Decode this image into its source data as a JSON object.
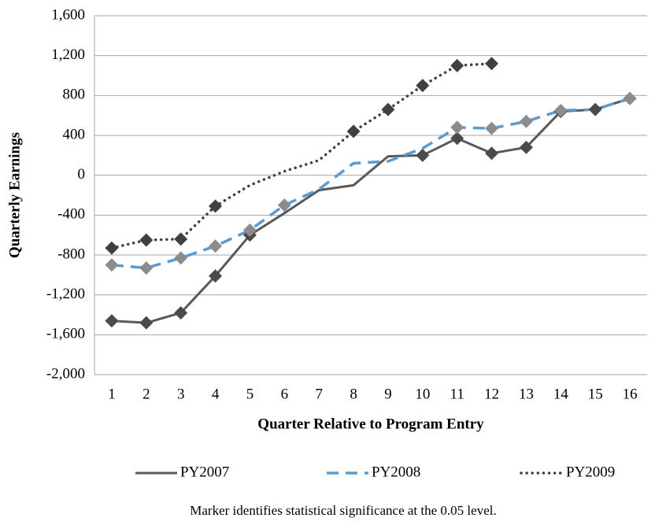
{
  "chart_data": {
    "type": "line",
    "y_label": "Quarterly Earnings",
    "x_label": "Quarter Relative to Program Entry",
    "note": "Marker identifies statistical significance at the 0.05 level.",
    "categories": [
      "1",
      "2",
      "3",
      "4",
      "5",
      "6",
      "7",
      "8",
      "9",
      "10",
      "11",
      "12",
      "13",
      "14",
      "15",
      "16"
    ],
    "ylim": [
      -2000,
      1600
    ],
    "yticks": [
      {
        "value": -2000,
        "label": "-2,000"
      },
      {
        "value": -1600,
        "label": "-1,600"
      },
      {
        "value": -1200,
        "label": "-1,200"
      },
      -800,
      -400,
      0,
      400,
      800,
      {
        "value": 1200,
        "label": "1,200"
      },
      {
        "value": 1600,
        "label": "1,600"
      }
    ],
    "grid": true,
    "legend": "bottom",
    "series": [
      {
        "name": "PY2007",
        "color": "#595959",
        "style": "solid",
        "marker_color": "#4a4a4a",
        "values": [
          -1460,
          -1480,
          -1380,
          -1010,
          -600,
          -380,
          -150,
          -100,
          190,
          200,
          370,
          220,
          280,
          640,
          660,
          770
        ],
        "significant": [
          true,
          true,
          true,
          true,
          true,
          false,
          false,
          false,
          false,
          true,
          true,
          true,
          true,
          true,
          true,
          true
        ]
      },
      {
        "name": "PY2008",
        "color": "#5b9bd5",
        "style": "dashed",
        "marker_color": "#8c8c8c",
        "values": [
          -900,
          -930,
          -830,
          -710,
          -550,
          -300,
          -140,
          120,
          140,
          270,
          480,
          470,
          540,
          650,
          660,
          770
        ],
        "significant": [
          true,
          true,
          true,
          true,
          true,
          true,
          false,
          false,
          false,
          false,
          true,
          true,
          true,
          true,
          false,
          true
        ]
      },
      {
        "name": "PY2009",
        "color": "#404040",
        "style": "dotted",
        "marker_color": "#404040",
        "values": [
          -730,
          -650,
          -640,
          -310,
          -100,
          40,
          150,
          440,
          660,
          900,
          1100,
          1120,
          null,
          null,
          null,
          null
        ],
        "significant": [
          true,
          true,
          true,
          true,
          false,
          false,
          false,
          true,
          true,
          true,
          true,
          true,
          false,
          false,
          false,
          false
        ]
      }
    ]
  }
}
